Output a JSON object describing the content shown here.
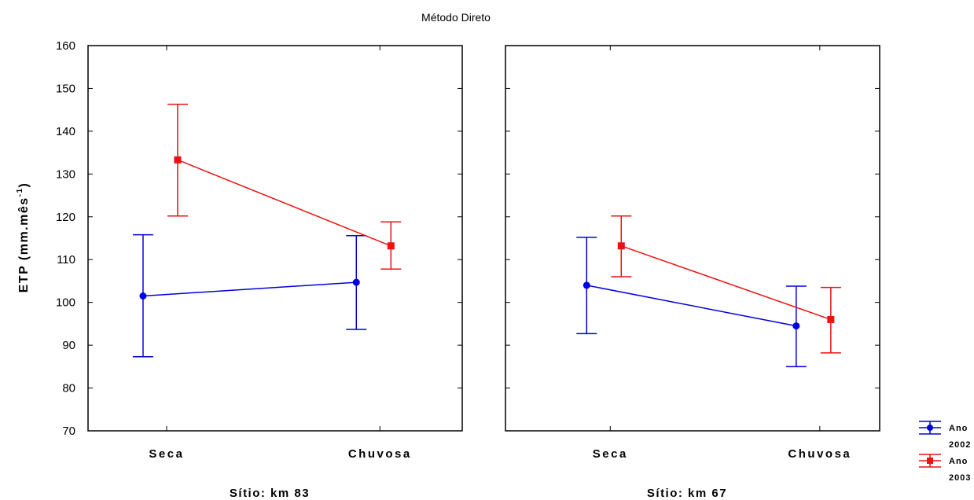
{
  "chart_data": {
    "type": "line",
    "title": "Método Direto",
    "ylabel": "ETP (mm.mês",
    "ylabel_sup": "-1",
    "ylabel_end": ")",
    "ylim": [
      70,
      160
    ],
    "yticks": [
      70,
      80,
      90,
      100,
      110,
      120,
      130,
      140,
      150,
      160
    ],
    "categories": [
      "Seca",
      "Chuvosa"
    ],
    "legend_placement": "bottom-right",
    "legend": [
      {
        "line1": "Ano",
        "line2": "2002",
        "color": "#0000e0",
        "marker": "circle"
      },
      {
        "line1": "Ano",
        "line2": "2003",
        "color": "#ee1111",
        "marker": "square"
      }
    ],
    "panels": [
      {
        "label": "Sítio: km 83",
        "series": [
          {
            "name": "2002",
            "color": "#0000e0",
            "marker": "circle",
            "values": [
              101.5,
              104.7
            ],
            "lower": [
              87.3,
              93.7
            ],
            "upper": [
              115.8,
              115.6
            ]
          },
          {
            "name": "2003",
            "color": "#ee1111",
            "marker": "square",
            "values": [
              133.3,
              113.2
            ],
            "lower": [
              120.2,
              107.8
            ],
            "upper": [
              146.3,
              118.8
            ]
          }
        ]
      },
      {
        "label": "Sítio: km 67",
        "series": [
          {
            "name": "2002",
            "color": "#0000e0",
            "marker": "circle",
            "values": [
              104.0,
              94.5
            ],
            "lower": [
              92.7,
              85.0
            ],
            "upper": [
              115.2,
              103.8
            ]
          },
          {
            "name": "2003",
            "color": "#ee1111",
            "marker": "square",
            "values": [
              113.2,
              96.0
            ],
            "lower": [
              106.0,
              88.2
            ],
            "upper": [
              120.2,
              103.5
            ]
          }
        ]
      }
    ]
  }
}
